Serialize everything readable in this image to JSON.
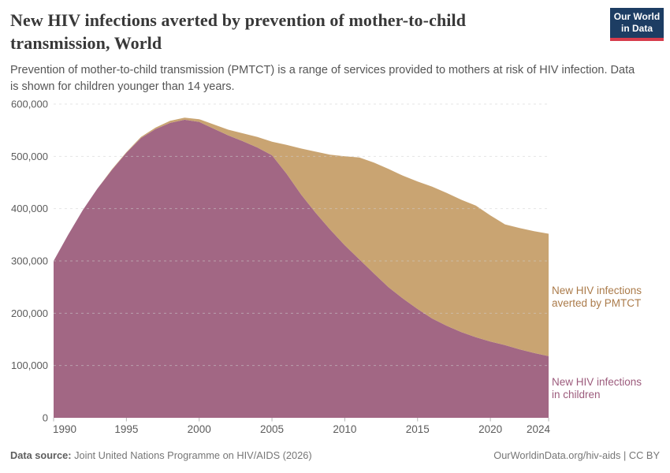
{
  "header": {
    "title": "New HIV infections averted by prevention of mother-to-child transmission, World",
    "subtitle": "Prevention of mother-to-child transmission (PMTCT) is a range of services provided to mothers at risk of HIV infection. Data is shown for children younger than 14 years.",
    "logo_text": "Our World\nin Data"
  },
  "chart_data": {
    "type": "area",
    "stacked": true,
    "title": "New HIV infections averted by prevention of mother-to-child transmission, World",
    "x": [
      1990,
      1991,
      1992,
      1993,
      1994,
      1995,
      1996,
      1997,
      1998,
      1999,
      2000,
      2001,
      2002,
      2003,
      2004,
      2005,
      2006,
      2007,
      2008,
      2009,
      2010,
      2011,
      2012,
      2013,
      2014,
      2015,
      2016,
      2017,
      2018,
      2019,
      2020,
      2021,
      2022,
      2023,
      2024
    ],
    "series": [
      {
        "name": "New HIV infections in children",
        "color": "#a26784",
        "values": [
          300000,
          350000,
          397000,
          438000,
          474000,
          507000,
          535000,
          552000,
          564000,
          570000,
          566000,
          553000,
          540000,
          529000,
          517000,
          502000,
          467000,
          427000,
          392000,
          360000,
          330000,
          303000,
          276000,
          250000,
          228000,
          208000,
          190000,
          176000,
          164000,
          154000,
          146000,
          139000,
          131000,
          124000,
          118000
        ]
      },
      {
        "name": "New HIV infections averted by PMTCT",
        "color": "#c9a472",
        "values": [
          0,
          0,
          0,
          0,
          1000,
          1000,
          2000,
          3000,
          4000,
          4000,
          5000,
          8000,
          11000,
          15000,
          20000,
          26000,
          55000,
          88000,
          117000,
          143000,
          170000,
          195000,
          212000,
          226000,
          235000,
          244000,
          252000,
          254000,
          253000,
          252000,
          241000,
          231000,
          232000,
          233000,
          234000
        ]
      }
    ],
    "xlabel": "",
    "ylabel": "",
    "ylim": [
      0,
      600000
    ],
    "yticks": [
      0,
      100000,
      200000,
      300000,
      400000,
      500000,
      600000
    ],
    "xticks": [
      1990,
      1995,
      2000,
      2005,
      2010,
      2015,
      2020,
      2024
    ],
    "grid": "horizontal-dashed",
    "legend_position": "right-edge-annotations"
  },
  "annotations": {
    "averted_label": "New HIV infections\naverted by PMTCT",
    "children_label": "New HIV infections\nin children"
  },
  "footer": {
    "source_label": "Data source:",
    "source_text": " Joint United Nations Programme on HIV/AIDS (2026)",
    "credit": "OurWorldinData.org/hiv-aids | CC BY"
  },
  "colors": {
    "children_area": "#a26784",
    "averted_area": "#c9a472",
    "children_label": "#9c5b7c",
    "averted_label": "#ab7b4a",
    "gridline": "#cfcfcf",
    "axis_text": "#5b5b5b",
    "logo_bg": "#1d3d63",
    "logo_stripe": "#d73c4c"
  }
}
